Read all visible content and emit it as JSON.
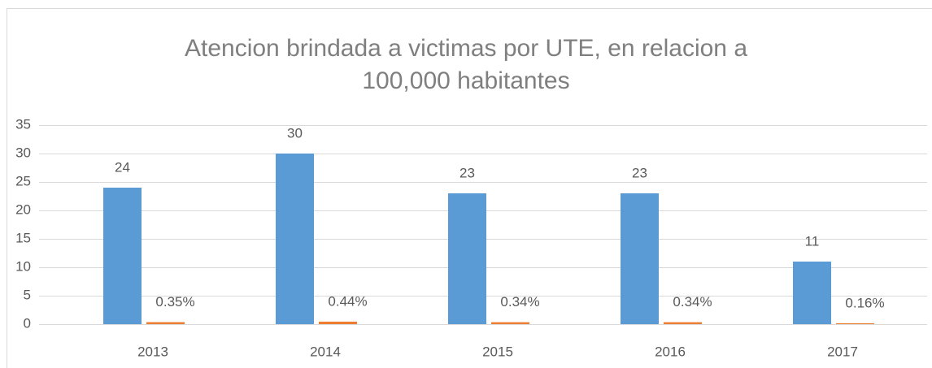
{
  "chart_data": {
    "type": "bar",
    "title": "Atencion brindada a victimas por UTE, en relacion a 100,000 habitantes",
    "categories": [
      "2013",
      "2014",
      "2015",
      "2016",
      "2017"
    ],
    "series": [
      {
        "color": "#5b9bd5",
        "values": [
          24,
          30,
          23,
          23,
          11
        ]
      },
      {
        "color": "#ed7d31",
        "values": [
          0.35,
          0.44,
          0.34,
          0.34,
          0.16
        ],
        "value_labels": [
          "0.35%",
          "0.44%",
          "0.34%",
          "0.34%",
          "0.16%"
        ]
      }
    ],
    "ylim": [
      0,
      35
    ],
    "yticks": [
      0,
      5,
      10,
      15,
      20,
      25,
      30,
      35
    ],
    "grid": true
  }
}
